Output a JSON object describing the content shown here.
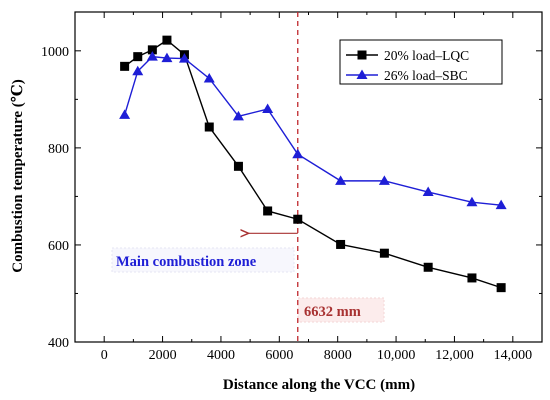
{
  "chart_data": {
    "type": "line",
    "xlabel": "Distance along the VCC (mm)",
    "ylabel": "Combustion temperature (℃)",
    "xlim": [
      -1000,
      15000
    ],
    "ylim": [
      400,
      1080
    ],
    "xticks": [
      0,
      2000,
      4000,
      6000,
      8000,
      10000,
      12000,
      14000
    ],
    "xtick_labels": [
      "0",
      "2000",
      "4000",
      "6000",
      "8000",
      "10,000",
      "12,000",
      "14,000"
    ],
    "yticks": [
      400,
      600,
      800,
      1000
    ],
    "ytick_labels": [
      "400",
      "600",
      "800",
      "1000"
    ],
    "grid": false,
    "legend_position": "top-right",
    "series": [
      {
        "name": "20% load–LQC",
        "color": "#000000",
        "marker": "square",
        "x": [
          700,
          1150,
          1650,
          2150,
          2750,
          3600,
          4600,
          5600,
          6632,
          8100,
          9600,
          11100,
          12600,
          13600
        ],
        "y": [
          968,
          988,
          1002,
          1022,
          992,
          843,
          762,
          670,
          653,
          601,
          583,
          554,
          532,
          512
        ]
      },
      {
        "name": "26% load–SBC",
        "color": "#1e1ed6",
        "marker": "triangle",
        "x": [
          700,
          1150,
          1650,
          2150,
          2750,
          3600,
          4600,
          5600,
          6632,
          8100,
          9600,
          11100,
          12600,
          13600
        ],
        "y": [
          868,
          958,
          988,
          985,
          984,
          943,
          865,
          880,
          787,
          732,
          732,
          709,
          688,
          682
        ]
      }
    ],
    "vline": {
      "x": 6632,
      "color": "#c0282d",
      "label": "6632 mm"
    },
    "arrow": {
      "from_x": 6632,
      "to_x": 4950,
      "y": 624,
      "color": "#a83232"
    },
    "annotations": {
      "zone_label": "Main combustion zone",
      "zone_color": "#1e1ed6"
    }
  }
}
